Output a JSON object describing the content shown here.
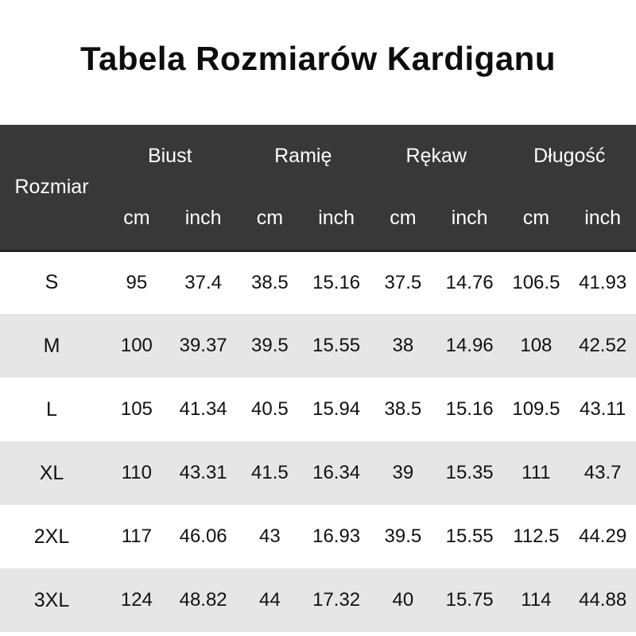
{
  "page": {
    "title": "Tabela Rozmiarów Kardiganu"
  },
  "table": {
    "colors": {
      "header_bg": "#383838",
      "header_text": "#ffffff",
      "row_bg": "#ffffff",
      "row_alt_bg": "#e6e6e6",
      "body_text": "#111111"
    },
    "size_column_header": "Rozmiar",
    "groups": [
      {
        "label": "Biust"
      },
      {
        "label": "Ramię"
      },
      {
        "label": "Rękaw"
      },
      {
        "label": "Długość"
      }
    ],
    "units": {
      "cm": "cm",
      "inch": "inch"
    },
    "rows": [
      {
        "size": "S",
        "values": [
          "95",
          "37.4",
          "38.5",
          "15.16",
          "37.5",
          "14.76",
          "106.5",
          "41.93"
        ]
      },
      {
        "size": "M",
        "values": [
          "100",
          "39.37",
          "39.5",
          "15.55",
          "38",
          "14.96",
          "108",
          "42.52"
        ]
      },
      {
        "size": "L",
        "values": [
          "105",
          "41.34",
          "40.5",
          "15.94",
          "38.5",
          "15.16",
          "109.5",
          "43.11"
        ]
      },
      {
        "size": "XL",
        "values": [
          "110",
          "43.31",
          "41.5",
          "16.34",
          "39",
          "15.35",
          "111",
          "43.7"
        ]
      },
      {
        "size": "2XL",
        "values": [
          "117",
          "46.06",
          "43",
          "16.93",
          "39.5",
          "15.55",
          "112.5",
          "44.29"
        ]
      },
      {
        "size": "3XL",
        "values": [
          "124",
          "48.82",
          "44",
          "17.32",
          "40",
          "15.75",
          "114",
          "44.88"
        ]
      }
    ]
  }
}
